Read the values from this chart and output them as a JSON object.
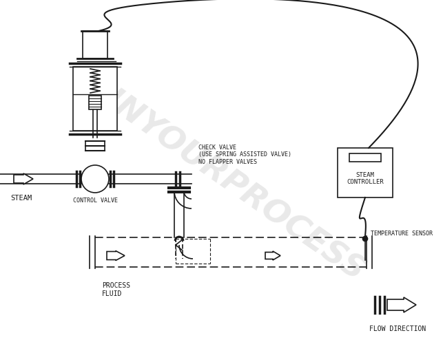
{
  "bg_color": "#ffffff",
  "line_color": "#1a1a1a",
  "watermark": "INYOURPROCESS",
  "watermark_color": "#c8c8c8",
  "labels": {
    "steam": "STEAM",
    "control_valve": "CONTROL VALVE",
    "check_valve": "CHECK VALVE\n(USE SPRING ASSISTED VALVE)\nNO FLAPPER VALVES",
    "steam_controller": "STEAM\nCONTROLLER",
    "temperature_sensor": "TEMPERATURE SENSOR",
    "process_fluid": "PROCESS\nFLUID",
    "flow_direction": "FLOW DIRECTION"
  },
  "fig_width": 6.43,
  "fig_height": 5.13,
  "dpi": 100
}
